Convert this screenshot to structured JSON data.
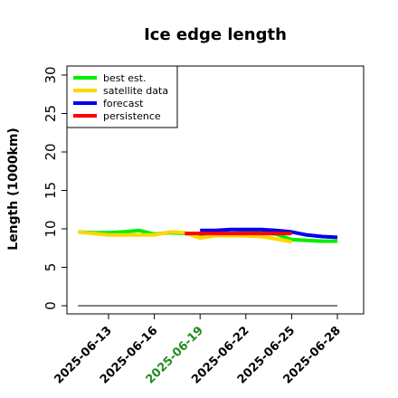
{
  "chart_data": {
    "type": "line",
    "title": "Ice edge length",
    "xlabel": "",
    "ylabel": "Length (1000km)",
    "ylim": [
      0,
      30
    ],
    "yticks": [
      "0",
      "5",
      "10",
      "15",
      "20",
      "25",
      "30"
    ],
    "xticks": [
      {
        "label": "2025-06-13",
        "color": "#000000"
      },
      {
        "label": "2025-06-16",
        "color": "#000000"
      },
      {
        "label": "2025-06-19",
        "color": "#228b22"
      },
      {
        "label": "2025-06-22",
        "color": "#000000"
      },
      {
        "label": "2025-06-25",
        "color": "#000000"
      },
      {
        "label": "2025-06-28",
        "color": "#000000"
      }
    ],
    "legend_position": "top-left",
    "baseline": {
      "y": 0,
      "x_from": "2025-06-11",
      "x_to": "2025-06-28",
      "color": "#555555"
    },
    "series": [
      {
        "name": "best est.",
        "color": "#00ee00",
        "x": [
          "2025-06-11",
          "2025-06-12",
          "2025-06-13",
          "2025-06-14",
          "2025-06-15",
          "2025-06-16",
          "2025-06-17",
          "2025-06-18",
          "2025-06-19",
          "2025-06-20",
          "2025-06-21",
          "2025-06-22",
          "2025-06-23",
          "2025-06-24",
          "2025-06-25",
          "2025-06-26",
          "2025-06-27",
          "2025-06-28"
        ],
        "y": [
          9.6,
          9.5,
          9.5,
          9.6,
          9.8,
          9.3,
          9.5,
          9.4,
          9.2,
          9.3,
          9.4,
          9.5,
          9.5,
          9.3,
          8.6,
          8.5,
          8.4,
          8.4
        ]
      },
      {
        "name": "satellite data",
        "color": "#ffd700",
        "x": [
          "2025-06-11",
          "2025-06-12",
          "2025-06-13",
          "2025-06-14",
          "2025-06-15",
          "2025-06-16",
          "2025-06-17",
          "2025-06-18",
          "2025-06-19",
          "2025-06-20",
          "2025-06-21",
          "2025-06-22",
          "2025-06-23",
          "2025-06-24",
          "2025-06-25"
        ],
        "y": [
          9.6,
          9.4,
          9.2,
          9.2,
          9.2,
          9.2,
          9.6,
          9.5,
          8.8,
          9.1,
          9.1,
          9.1,
          9.0,
          8.7,
          8.3
        ]
      },
      {
        "name": "forecast",
        "color": "#0000ee",
        "x": [
          "2025-06-19",
          "2025-06-20",
          "2025-06-21",
          "2025-06-22",
          "2025-06-23",
          "2025-06-24",
          "2025-06-25",
          "2025-06-26",
          "2025-06-27",
          "2025-06-28"
        ],
        "y": [
          9.8,
          9.8,
          9.9,
          9.9,
          9.9,
          9.8,
          9.6,
          9.2,
          9.0,
          8.9
        ]
      },
      {
        "name": "persistence",
        "color": "#ff0000",
        "x": [
          "2025-06-18",
          "2025-06-19",
          "2025-06-20",
          "2025-06-21",
          "2025-06-22",
          "2025-06-23",
          "2025-06-24",
          "2025-06-25"
        ],
        "y": [
          9.4,
          9.4,
          9.4,
          9.4,
          9.4,
          9.4,
          9.4,
          9.4
        ]
      }
    ]
  }
}
